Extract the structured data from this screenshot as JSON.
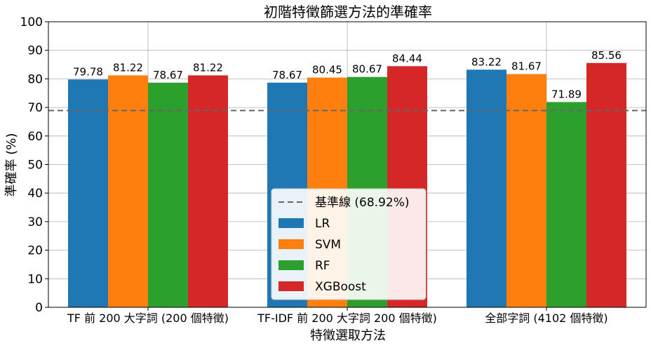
{
  "chart_data": {
    "type": "bar",
    "title": "初階特徵篩選方法的準確率",
    "xlabel": "特徵選取方法",
    "ylabel": "準確率 (%)",
    "ylim": [
      0,
      100
    ],
    "yticks": [
      "0",
      "10",
      "20",
      "30",
      "40",
      "50",
      "60",
      "70",
      "80",
      "90",
      "100"
    ],
    "grid": true,
    "categories": [
      "TF 前 200 大字詞 (200 個特徵)",
      "TF-IDF 前 200 大字詞 200 個特徵)",
      "全部字詞 (4102 個特徵)"
    ],
    "series": [
      {
        "name": "LR",
        "color": "#1f77b4",
        "values": [
          79.78,
          78.67,
          83.22
        ],
        "labels": [
          "79.78",
          "78.67",
          "83.22"
        ]
      },
      {
        "name": "SVM",
        "color": "#ff7f0e",
        "values": [
          81.22,
          80.45,
          81.67
        ],
        "labels": [
          "81.22",
          "80.45",
          "81.67"
        ]
      },
      {
        "name": "RF",
        "color": "#2ca02c",
        "values": [
          78.67,
          80.67,
          71.89
        ],
        "labels": [
          "78.67",
          "80.67",
          "71.89"
        ]
      },
      {
        "name": "XGBoost",
        "color": "#d62728",
        "values": [
          81.22,
          84.44,
          85.56
        ],
        "labels": [
          "81.22",
          "84.44",
          "85.56"
        ]
      }
    ],
    "baseline": {
      "label": "基準線 (68.92%)",
      "value": 68.92,
      "color": "#666666"
    },
    "legend_position": "lower-center"
  }
}
